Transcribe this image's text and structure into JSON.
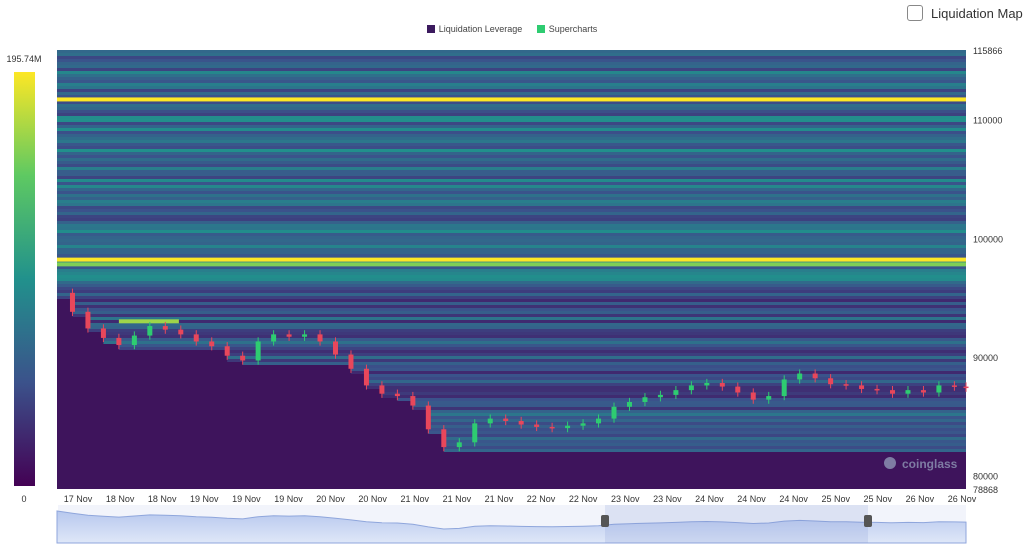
{
  "legend": {
    "leverage_label": "Liquidation Leverage",
    "leverage_color": "#3b1a5e",
    "supercharts_label": "Supercharts",
    "supercharts_color": "#2ecc71"
  },
  "toggle": {
    "label": "Liquidation Map"
  },
  "colorbar": {
    "max_label": "195.74M",
    "min_label": "0"
  },
  "watermark": "coinglass",
  "chart_data": {
    "type": "heatmap",
    "price_axis": {
      "min": 78868,
      "max": 115866,
      "ticks": [
        115866,
        110000,
        100000,
        90000,
        80000,
        78868
      ]
    },
    "x_tick_labels": [
      "17 Nov",
      "18 Nov",
      "18 Nov",
      "19 Nov",
      "19 Nov",
      "19 Nov",
      "20 Nov",
      "20 Nov",
      "21 Nov",
      "21 Nov",
      "21 Nov",
      "22 Nov",
      "22 Nov",
      "23 Nov",
      "23 Nov",
      "24 Nov",
      "24 Nov",
      "24 Nov",
      "25 Nov",
      "25 Nov",
      "26 Nov",
      "26 Nov"
    ],
    "price_path": [
      [
        0,
        95400
      ],
      [
        4,
        93800
      ],
      [
        8,
        92400
      ],
      [
        12,
        91600
      ],
      [
        16,
        91000
      ],
      [
        20,
        91800
      ],
      [
        24,
        92600
      ],
      [
        28,
        92300
      ],
      [
        32,
        91900
      ],
      [
        36,
        91300
      ],
      [
        40,
        90900
      ],
      [
        44,
        90100
      ],
      [
        48,
        89700
      ],
      [
        52,
        91300
      ],
      [
        56,
        91900
      ],
      [
        60,
        91700
      ],
      [
        64,
        91900
      ],
      [
        68,
        91300
      ],
      [
        72,
        90200
      ],
      [
        76,
        89000
      ],
      [
        80,
        87600
      ],
      [
        84,
        86900
      ],
      [
        88,
        86700
      ],
      [
        92,
        85900
      ],
      [
        96,
        83900
      ],
      [
        100,
        82400
      ],
      [
        104,
        82800
      ],
      [
        108,
        84400
      ],
      [
        112,
        84800
      ],
      [
        116,
        84600
      ],
      [
        120,
        84300
      ],
      [
        124,
        84100
      ],
      [
        128,
        84000
      ],
      [
        132,
        84200
      ],
      [
        136,
        84400
      ],
      [
        140,
        84800
      ],
      [
        144,
        85800
      ],
      [
        148,
        86200
      ],
      [
        152,
        86600
      ],
      [
        156,
        86800
      ],
      [
        160,
        87200
      ],
      [
        164,
        87600
      ],
      [
        168,
        87800
      ],
      [
        172,
        87500
      ],
      [
        176,
        87000
      ],
      [
        180,
        86400
      ],
      [
        184,
        86700
      ],
      [
        188,
        88100
      ],
      [
        192,
        88600
      ],
      [
        196,
        88200
      ],
      [
        200,
        87700
      ],
      [
        204,
        87600
      ],
      [
        208,
        87300
      ],
      [
        212,
        87200
      ],
      [
        216,
        86900
      ],
      [
        220,
        87200
      ],
      [
        224,
        87000
      ],
      [
        228,
        87600
      ],
      [
        232,
        87500
      ],
      [
        235,
        87400
      ]
    ],
    "hot_bands": [
      {
        "price": 111700,
        "intensity": 1.0
      },
      {
        "price": 98200,
        "intensity": 1.0
      },
      {
        "price": 97800,
        "intensity": 0.8
      },
      {
        "price": 93000,
        "intensity": 0.85
      }
    ],
    "colorbar_range": [
      0,
      195740000
    ]
  }
}
